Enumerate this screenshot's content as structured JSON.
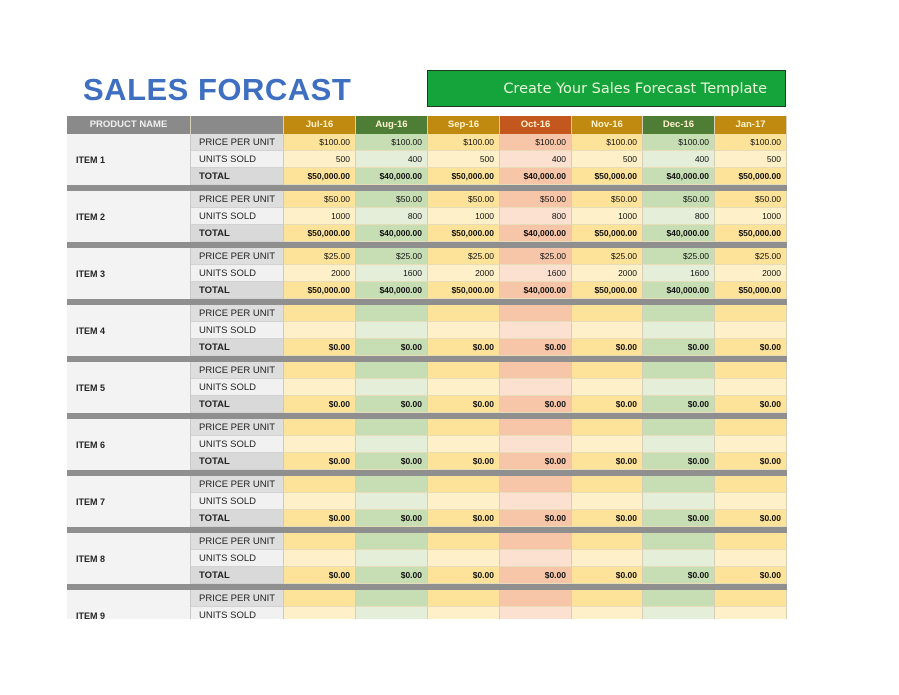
{
  "title": "SALES FORCAST",
  "banner": "Create Your Sales Forecast Template",
  "header": {
    "product_name": "PRODUCT NAME",
    "label": "",
    "months": [
      "Jul-16",
      "Aug-16",
      "Sep-16",
      "Oct-16",
      "Nov-16",
      "Dec-16",
      "Jan-17"
    ]
  },
  "colors": {
    "month_header": [
      "#c08a10",
      "#4e7d35",
      "#c08a10",
      "#c4571e",
      "#c08a10",
      "#4e7d35",
      "#c08a10"
    ],
    "price_row": [
      "#fde29a",
      "#c7ddb4",
      "#fde29a",
      "#f7c6a9",
      "#fde29a",
      "#c7ddb4",
      "#fde29a"
    ],
    "units_row": [
      "#fef1c9",
      "#e4eed9",
      "#fef1c9",
      "#fce0d0",
      "#fef1c9",
      "#e4eed9",
      "#fef1c9"
    ],
    "total_row": [
      "#fde29a",
      "#c7ddb4",
      "#fde29a",
      "#f7c6a9",
      "#fde29a",
      "#c7ddb4",
      "#fde29a"
    ]
  },
  "row_labels": {
    "price": "PRICE PER UNIT",
    "units": "UNITS SOLD",
    "total": "TOTAL"
  },
  "items": [
    {
      "name": "ITEM 1",
      "price": [
        "$100.00",
        "$100.00",
        "$100.00",
        "$100.00",
        "$100.00",
        "$100.00",
        "$100.00"
      ],
      "units": [
        "500",
        "400",
        "500",
        "400",
        "500",
        "400",
        "500"
      ],
      "total": [
        "$50,000.00",
        "$40,000.00",
        "$50,000.00",
        "$40,000.00",
        "$50,000.00",
        "$40,000.00",
        "$50,000.00"
      ]
    },
    {
      "name": "ITEM 2",
      "price": [
        "$50.00",
        "$50.00",
        "$50.00",
        "$50.00",
        "$50.00",
        "$50.00",
        "$50.00"
      ],
      "units": [
        "1000",
        "800",
        "1000",
        "800",
        "1000",
        "800",
        "1000"
      ],
      "total": [
        "$50,000.00",
        "$40,000.00",
        "$50,000.00",
        "$40,000.00",
        "$50,000.00",
        "$40,000.00",
        "$50,000.00"
      ]
    },
    {
      "name": "ITEM 3",
      "price": [
        "$25.00",
        "$25.00",
        "$25.00",
        "$25.00",
        "$25.00",
        "$25.00",
        "$25.00"
      ],
      "units": [
        "2000",
        "1600",
        "2000",
        "1600",
        "2000",
        "1600",
        "2000"
      ],
      "total": [
        "$50,000.00",
        "$40,000.00",
        "$50,000.00",
        "$40,000.00",
        "$50,000.00",
        "$40,000.00",
        "$50,000.00"
      ]
    },
    {
      "name": "ITEM 4",
      "price": [
        "",
        "",
        "",
        "",
        "",
        "",
        ""
      ],
      "units": [
        "",
        "",
        "",
        "",
        "",
        "",
        ""
      ],
      "total": [
        "$0.00",
        "$0.00",
        "$0.00",
        "$0.00",
        "$0.00",
        "$0.00",
        "$0.00"
      ]
    },
    {
      "name": "ITEM 5",
      "price": [
        "",
        "",
        "",
        "",
        "",
        "",
        ""
      ],
      "units": [
        "",
        "",
        "",
        "",
        "",
        "",
        ""
      ],
      "total": [
        "$0.00",
        "$0.00",
        "$0.00",
        "$0.00",
        "$0.00",
        "$0.00",
        "$0.00"
      ]
    },
    {
      "name": "ITEM 6",
      "price": [
        "",
        "",
        "",
        "",
        "",
        "",
        ""
      ],
      "units": [
        "",
        "",
        "",
        "",
        "",
        "",
        ""
      ],
      "total": [
        "$0.00",
        "$0.00",
        "$0.00",
        "$0.00",
        "$0.00",
        "$0.00",
        "$0.00"
      ]
    },
    {
      "name": "ITEM 7",
      "price": [
        "",
        "",
        "",
        "",
        "",
        "",
        ""
      ],
      "units": [
        "",
        "",
        "",
        "",
        "",
        "",
        ""
      ],
      "total": [
        "$0.00",
        "$0.00",
        "$0.00",
        "$0.00",
        "$0.00",
        "$0.00",
        "$0.00"
      ]
    },
    {
      "name": "ITEM 8",
      "price": [
        "",
        "",
        "",
        "",
        "",
        "",
        ""
      ],
      "units": [
        "",
        "",
        "",
        "",
        "",
        "",
        ""
      ],
      "total": [
        "$0.00",
        "$0.00",
        "$0.00",
        "$0.00",
        "$0.00",
        "$0.00",
        "$0.00"
      ]
    },
    {
      "name": "ITEM 9",
      "price": [
        "",
        "",
        "",
        "",
        "",
        "",
        ""
      ],
      "units": [
        "",
        "",
        "",
        "",
        "",
        "",
        ""
      ],
      "total": [
        "",
        "",
        "",
        "",
        "",
        "",
        ""
      ]
    }
  ]
}
